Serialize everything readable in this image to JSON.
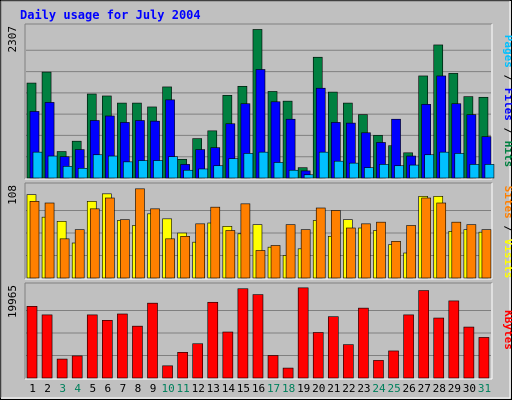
{
  "chart_data": {
    "type": "bar",
    "title": "Daily usage for July 2004",
    "x": [
      "1",
      "2",
      "3",
      "4",
      "5",
      "6",
      "7",
      "8",
      "9",
      "10",
      "11",
      "12",
      "13",
      "14",
      "15",
      "16",
      "17",
      "18",
      "19",
      "20",
      "21",
      "22",
      "23",
      "24",
      "25",
      "26",
      "27",
      "28",
      "29",
      "30",
      "31"
    ],
    "weekend_days": [
      "3",
      "4",
      "10",
      "11",
      "17",
      "18",
      "24",
      "25",
      "31"
    ],
    "panels": [
      {
        "name": "hits-files-pages",
        "max_label": "2307",
        "max": 2307,
        "grid": true,
        "series": [
          {
            "name": "Hits",
            "color": "#008040",
            "values": [
              1470,
              1640,
              410,
              570,
              1300,
              1270,
              1160,
              1160,
              1100,
              1410,
              290,
              610,
              730,
              1280,
              1420,
              2300,
              1340,
              1190,
              160,
              1870,
              1330,
              1160,
              980,
              660,
              500,
              390,
              1580,
              2060,
              1620,
              1260,
              1250
            ]
          },
          {
            "name": "Files",
            "color": "#0000ff",
            "values": [
              1030,
              1170,
              330,
              440,
              890,
              960,
              860,
              890,
              880,
              1210,
              210,
              440,
              470,
              840,
              1150,
              1680,
              1180,
              910,
              110,
              1390,
              860,
              850,
              700,
              550,
              910,
              340,
              1140,
              1580,
              1150,
              980,
              640
            ]
          },
          {
            "name": "Pages",
            "color": "#00c0ff",
            "values": [
              400,
              340,
              180,
              150,
              360,
              340,
              250,
              270,
              270,
              330,
              120,
              140,
              190,
              300,
              380,
              400,
              240,
              120,
              50,
              400,
              260,
              230,
              160,
              210,
              190,
              200,
              360,
              400,
              380,
              210,
              210
            ]
          }
        ]
      },
      {
        "name": "visits-sites",
        "max_label": "108",
        "max": 108,
        "grid": true,
        "series": [
          {
            "name": "Visits",
            "color": "#ffff00",
            "values": [
              100,
              73,
              68,
              42,
              92,
              101,
              69,
              63,
              77,
              71,
              54,
              43,
              66,
              62,
              53,
              64,
              37,
              27,
              35,
              69,
              50,
              70,
              60,
              57,
              40,
              30,
              98,
              98,
              56,
              58,
              55
            ]
          },
          {
            "name": "Sites",
            "color": "#ff8000",
            "values": [
              92,
              90,
              47,
              58,
              83,
              96,
              70,
              107,
              83,
              47,
              50,
              65,
              85,
              57,
              89,
              33,
              39,
              64,
              58,
              84,
              81,
              60,
              65,
              67,
              44,
              63,
              96,
              90,
              67,
              64,
              58
            ]
          }
        ]
      },
      {
        "name": "kbytes",
        "max_label": "19965",
        "max": 19965,
        "grid": true,
        "series": [
          {
            "name": "KBytes",
            "color": "#ff0000",
            "values": [
              15900,
              14000,
              4200,
              4900,
              14000,
              12800,
              14200,
              11500,
              16600,
              2700,
              5700,
              7600,
              16800,
              10200,
              19800,
              18500,
              5000,
              2200,
              20000,
              10100,
              13600,
              7400,
              15500,
              3900,
              6000,
              14000,
              19400,
              13300,
              17100,
              11300,
              9000
            ]
          }
        ]
      }
    ],
    "right_label_hits": "Hits",
    "right_label_files": "Files",
    "right_label_pages": "Pages",
    "right_label_visits": "Visits",
    "right_label_sites": "Sites",
    "right_label_kbytes": "KBytes",
    "separator": "/"
  },
  "colors": {
    "frame": "#c0c0c0",
    "plot": "#c0c0c0",
    "title": "#0000ff",
    "weekday_label": "#000000",
    "weekend_label": "#00805c",
    "bar_edge": "#000000"
  }
}
